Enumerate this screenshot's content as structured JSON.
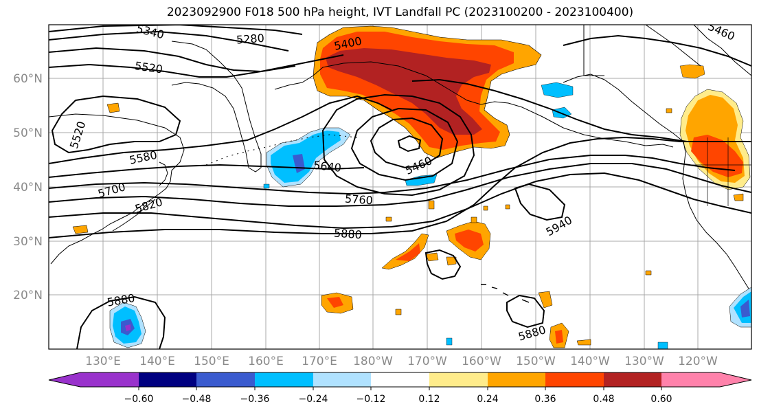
{
  "title": "2023092900 F018 500 hPa height, IVT Landfall PC (2023100200 - 2023100400)",
  "lat_labels": [
    "60°N",
    "50°N",
    "40°N",
    "30°N",
    "20°N"
  ],
  "lon_labels": [
    "130°E",
    "140°E",
    "150°E",
    "160°E",
    "170°E",
    "180°W",
    "170°W",
    "160°W",
    "150°W",
    "140°W",
    "130°W",
    "120°W"
  ],
  "contour_labels": [
    "5340",
    "5280",
    "5400",
    "5520",
    "5520",
    "5580",
    "5640",
    "5460",
    "5700",
    "5820",
    "5760",
    "5880",
    "5940",
    "5880",
    "5880",
    "5460"
  ],
  "colorbar": {
    "ticks": [
      "−0.60",
      "−0.48",
      "−0.36",
      "−0.24",
      "−0.12",
      "0.12",
      "0.24",
      "0.36",
      "0.48",
      "0.60"
    ],
    "colors": [
      "#9932cc",
      "#000080",
      "#3a5bcf",
      "#00bfff",
      "#b0e2ff",
      "#ffffff",
      "#ffec8b",
      "#ffa500",
      "#ff4500",
      "#b22222",
      "#ff82ab"
    ]
  },
  "shading_colors": {
    "dark_red": "#b22222",
    "red_orange": "#ff4500",
    "orange": "#ffa500",
    "light_yellow": "#ffec8b",
    "deep_sky": "#00bfff",
    "light_blue": "#b0e2ff",
    "royal_blue": "#3a5bcf",
    "purple": "#9932cc"
  }
}
